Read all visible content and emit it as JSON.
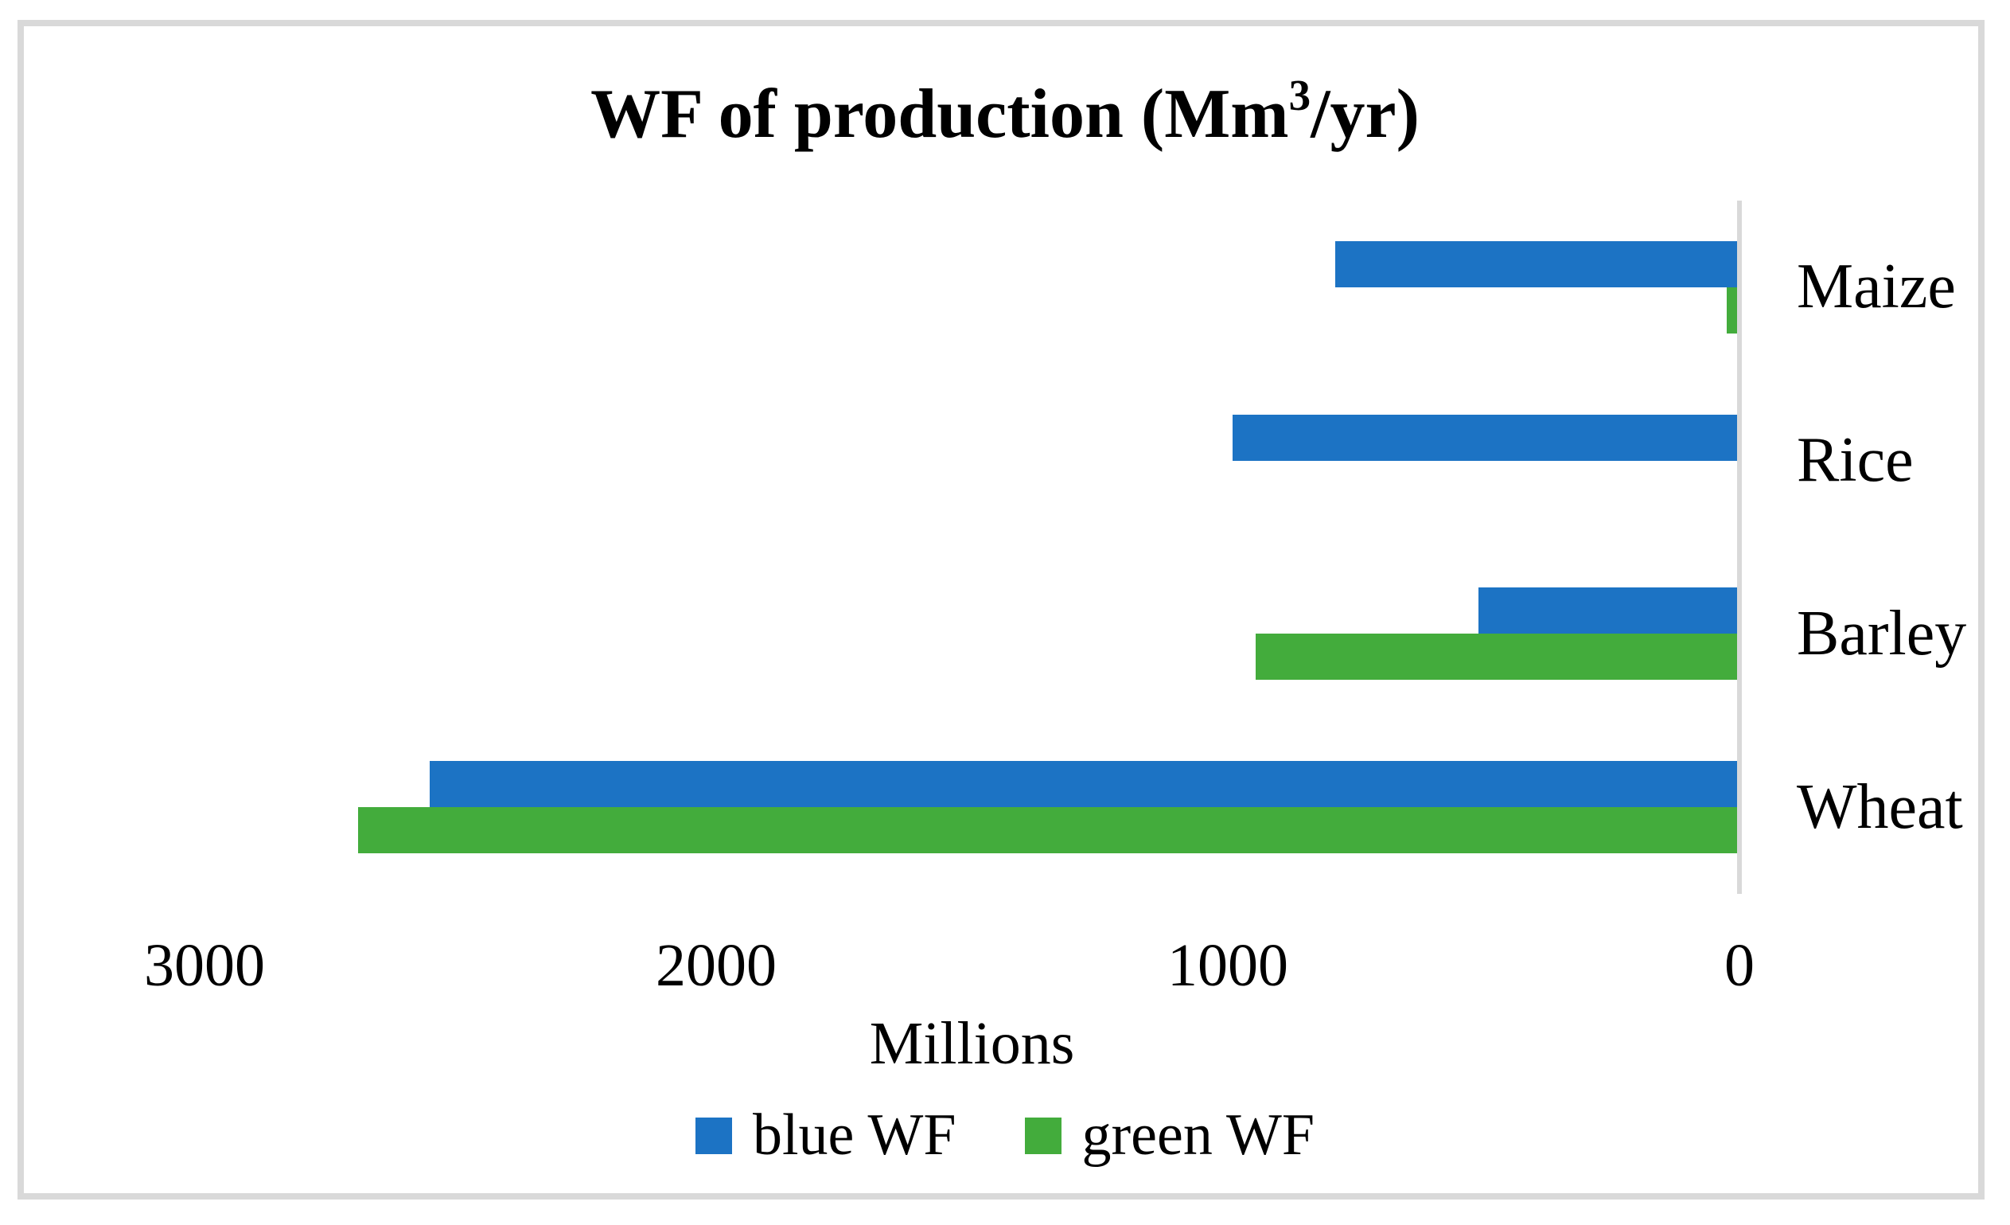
{
  "title": {
    "full": "WF of production (Mm³/yr)",
    "prefix": "WF of production (Mm",
    "superscript": "3",
    "suffix": "/yr)"
  },
  "colors": {
    "blue_series": "#1C73C4",
    "green_series": "#43AC3C",
    "axis_gray": "#D9D9D9",
    "text": "#000000",
    "background": "#FFFFFF"
  },
  "x_axis": {
    "unit_label": "Millions",
    "tick_labels": [
      "3000",
      "2000",
      "1000",
      "0"
    ]
  },
  "legend": {
    "items": [
      {
        "label": "blue WF",
        "color": "#1C73C4"
      },
      {
        "label": "green WF",
        "color": "#43AC3C"
      }
    ]
  },
  "chart_data": {
    "type": "bar",
    "orientation": "horizontal",
    "title": "WF of production (Mm³/yr)",
    "categories": [
      "Maize",
      "Rice",
      "Barley",
      "Wheat"
    ],
    "series": [
      {
        "name": "blue WF",
        "color": "#1C73C4",
        "values": [
          790,
          990,
          510,
          2560
        ]
      },
      {
        "name": "green WF",
        "color": "#43AC3C",
        "values": [
          25,
          0,
          945,
          2700
        ]
      }
    ],
    "xlabel": "Millions",
    "ylabel": "",
    "xlim": [
      0,
      3000
    ],
    "x_axis_reversed": true,
    "x_ticks": [
      3000,
      2000,
      1000,
      0
    ],
    "grid": false,
    "legend_position": "bottom",
    "value_axis_side": "right-zero"
  }
}
